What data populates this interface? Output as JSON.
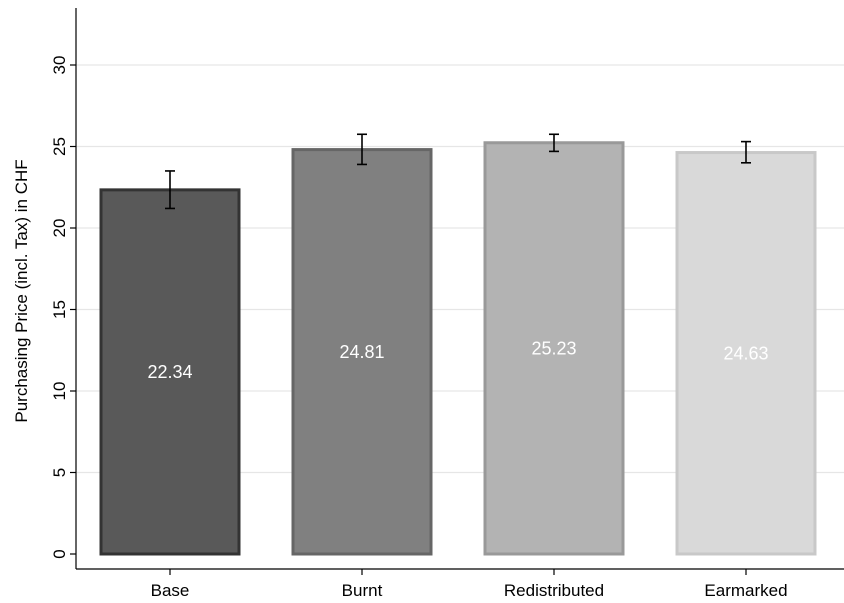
{
  "chart_data": {
    "type": "bar",
    "title": "",
    "xlabel": "",
    "ylabel": "Purchasing Price (incl. Tax) in CHF",
    "categories": [
      "Base",
      "Burnt",
      "Redistributed",
      "Earmarked"
    ],
    "values": [
      22.34,
      24.81,
      25.23,
      24.63
    ],
    "data_labels": [
      "22.34",
      "24.81",
      "25.23",
      "24.63"
    ],
    "error_bars": [
      {
        "low": 21.2,
        "high": 23.5
      },
      {
        "low": 23.9,
        "high": 25.75
      },
      {
        "low": 24.7,
        "high": 25.75
      },
      {
        "low": 24.0,
        "high": 25.3
      }
    ],
    "ylim": [
      0,
      33
    ],
    "yticks": [
      0,
      5,
      10,
      15,
      20,
      25,
      30
    ],
    "ytick_labels": [
      "0",
      "5",
      "10",
      "15",
      "20",
      "25",
      "30"
    ],
    "grid": true,
    "bar_fill_colors": [
      "#595959",
      "#808080",
      "#b3b3b3",
      "#d9d9d9"
    ],
    "bar_edge_colors": [
      "#333333",
      "#666666",
      "#999999",
      "#c8c8c8"
    ]
  }
}
